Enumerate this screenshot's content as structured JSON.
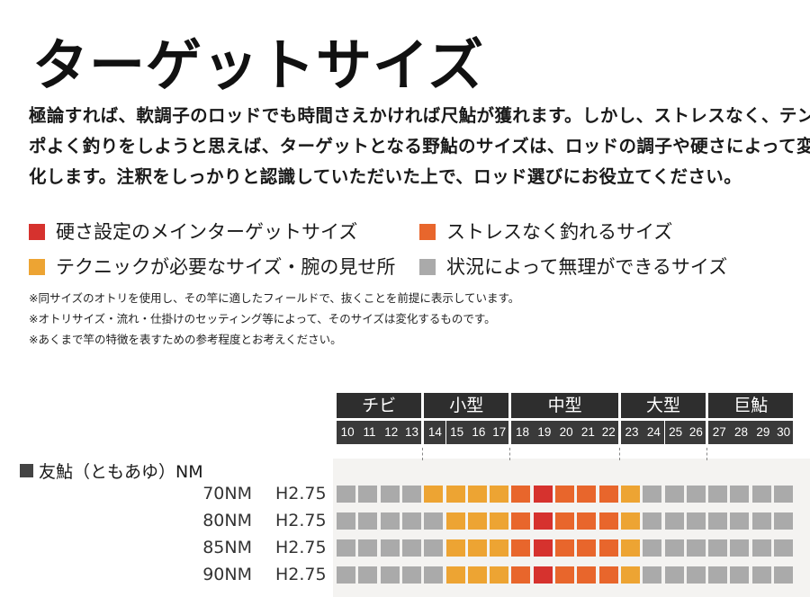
{
  "title": "ターゲットサイズ",
  "intro_lines": [
    "極論すれば、軟調子のロッドでも時間さえかければ尺鮎が獲れます。しかし、ストレスなく、テン",
    "ポよく釣りをしようと思えば、ターゲットとなる野鮎のサイズは、ロッドの調子や硬さによって変",
    "化します。注釈をしっかりと認識していただいた上で、ロッド選びにお役立てください。"
  ],
  "legend": [
    {
      "label": "硬さ設定のメインターゲットサイズ",
      "color": "#d6322e"
    },
    {
      "label": "ストレスなく釣れるサイズ",
      "color": "#e8662c"
    },
    {
      "label": "テクニックが必要なサイズ・腕の見せ所",
      "color": "#eda433"
    },
    {
      "label": "状況によって無理ができるサイズ",
      "color": "#aaaaaa"
    }
  ],
  "notes": [
    "※同サイズのオトリを使用し、その竿に適したフィールドで、抜くことを前提に表示しています。",
    "※オトリサイズ・流れ・仕掛けのセッティング等によって、そのサイズは変化するものです。",
    "※あくまで竿の特徴を表すための参考程度とお考えください。"
  ],
  "size_categories": [
    {
      "label": "チビ",
      "span": 4
    },
    {
      "label": "小型",
      "span": 4
    },
    {
      "label": "中型",
      "span": 5
    },
    {
      "label": "大型",
      "span": 4
    },
    {
      "label": "巨鮎",
      "span": 4
    }
  ],
  "size_numbers": [
    "10",
    "11",
    "12",
    "13",
    "14",
    "15",
    "16",
    "17",
    "18",
    "19",
    "20",
    "21",
    "22",
    "23",
    "24",
    "25",
    "26",
    "27",
    "28",
    "29",
    "30"
  ],
  "group_title": "友鮎（ともあゆ）NM",
  "colors": {
    "main": "#d6322e",
    "stress_free": "#e8662c",
    "technique": "#eda433",
    "possible": "#aaaaaa"
  },
  "models": [
    {
      "name": "70NM",
      "hardness": "H2.75",
      "cells": [
        "g",
        "g",
        "g",
        "g",
        "y",
        "y",
        "y",
        "y",
        "o",
        "r",
        "o",
        "o",
        "o",
        "y",
        "g",
        "g",
        "g",
        "g",
        "g",
        "g",
        "g"
      ]
    },
    {
      "name": "80NM",
      "hardness": "H2.75",
      "cells": [
        "g",
        "g",
        "g",
        "g",
        "g",
        "y",
        "y",
        "y",
        "o",
        "r",
        "o",
        "o",
        "o",
        "y",
        "g",
        "g",
        "g",
        "g",
        "g",
        "g",
        "g"
      ]
    },
    {
      "name": "85NM",
      "hardness": "H2.75",
      "cells": [
        "g",
        "g",
        "g",
        "g",
        "g",
        "y",
        "y",
        "y",
        "o",
        "r",
        "o",
        "o",
        "o",
        "y",
        "g",
        "g",
        "g",
        "g",
        "g",
        "g",
        "g"
      ]
    },
    {
      "name": "90NM",
      "hardness": "H2.75",
      "cells": [
        "g",
        "g",
        "g",
        "g",
        "g",
        "y",
        "y",
        "y",
        "o",
        "r",
        "o",
        "o",
        "o",
        "y",
        "g",
        "g",
        "g",
        "g",
        "g",
        "g",
        "g"
      ]
    }
  ]
}
